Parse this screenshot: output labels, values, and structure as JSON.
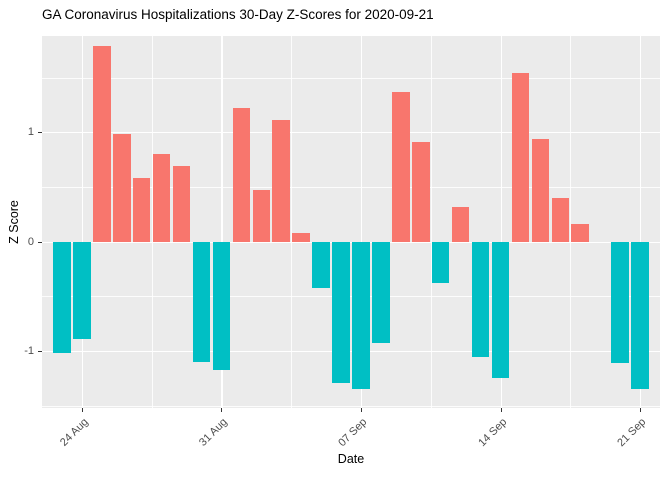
{
  "chart_data": {
    "type": "bar",
    "title": "GA Coronavirus Hospitalizations 30-Day Z-Scores for 2020-09-21",
    "xlabel": "Date",
    "ylabel": "Z Score",
    "categories": [
      "2020-08-23",
      "2020-08-24",
      "2020-08-25",
      "2020-08-26",
      "2020-08-27",
      "2020-08-28",
      "2020-08-29",
      "2020-08-30",
      "2020-08-31",
      "2020-09-01",
      "2020-09-02",
      "2020-09-03",
      "2020-09-04",
      "2020-09-05",
      "2020-09-06",
      "2020-09-07",
      "2020-09-08",
      "2020-09-09",
      "2020-09-10",
      "2020-09-11",
      "2020-09-12",
      "2020-09-13",
      "2020-09-14",
      "2020-09-15",
      "2020-09-16",
      "2020-09-17",
      "2020-09-18",
      "2020-09-19",
      "2020-09-20",
      "2020-09-21"
    ],
    "values": [
      -1.02,
      -0.89,
      1.79,
      0.98,
      0.58,
      0.8,
      0.69,
      -1.1,
      -1.17,
      1.22,
      0.47,
      1.11,
      0.08,
      -0.42,
      -1.29,
      -1.35,
      -0.93,
      1.37,
      0.91,
      -0.38,
      0.32,
      -1.05,
      -1.25,
      1.54,
      0.94,
      0.4,
      0.16,
      0.0,
      -1.11,
      -1.35
    ],
    "x_tick_labels": [
      "24 Aug",
      "31 Aug",
      "07 Sep",
      "14 Sep",
      "21 Sep"
    ],
    "x_tick_indices": [
      1,
      8,
      15,
      22,
      29
    ],
    "x_minor_tick_indices": [
      4.5,
      11.5,
      18.5,
      25.5
    ],
    "y_tick_labels": [
      "-1",
      "0",
      "1"
    ],
    "y_tick_values": [
      -1,
      0,
      1
    ],
    "y_minor_tick_values": [
      -1.5,
      -0.5,
      0.5,
      1.5
    ],
    "ylim": [
      -1.52,
      1.88
    ],
    "grid": true,
    "legend": "none",
    "colors": {
      "positive_bar": "#F8766D",
      "negative_bar": "#00BFC4",
      "panel_background": "#EBEBEB",
      "gridline": "#FFFFFF",
      "tick_label": "#4D4D4D",
      "axis_title": "#000000",
      "title": "#000000"
    }
  }
}
